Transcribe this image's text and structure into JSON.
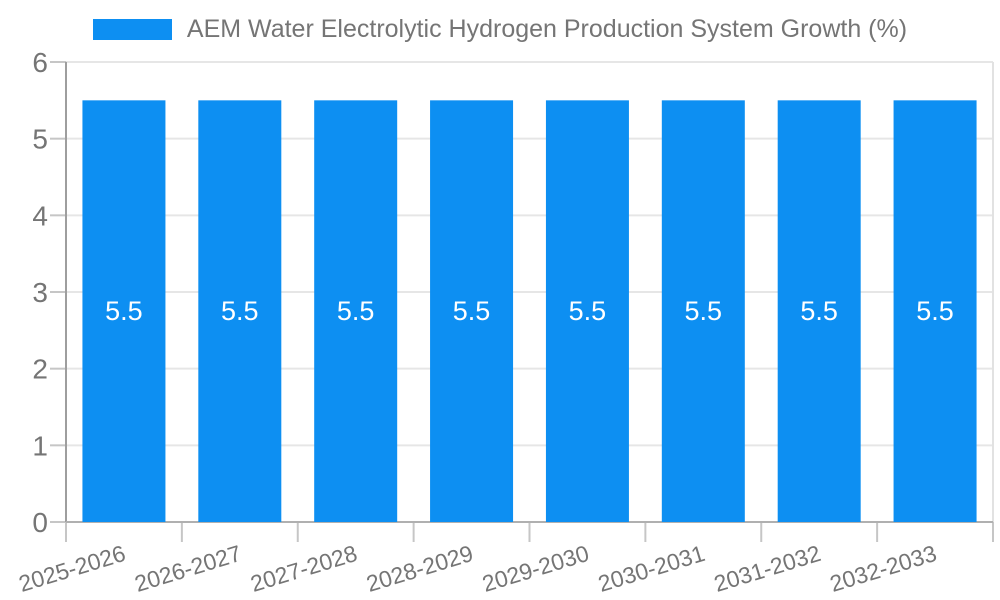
{
  "chart_data": {
    "type": "bar",
    "title": "AEM Water Electrolytic Hydrogen Production System Growth (%)",
    "legend": {
      "position": "top",
      "label": "AEM Water Electrolytic Hydrogen Production System Growth (%)"
    },
    "categories": [
      "2025-2026",
      "2026-2027",
      "2027-2028",
      "2028-2029",
      "2029-2030",
      "2030-2031",
      "2031-2032",
      "2032-2033"
    ],
    "series": [
      {
        "name": "AEM Water Electrolytic Hydrogen Production System Growth (%)",
        "values": [
          5.5,
          5.5,
          5.5,
          5.5,
          5.5,
          5.5,
          5.5,
          5.5
        ]
      }
    ],
    "value_labels": [
      "5.5",
      "5.5",
      "5.5",
      "5.5",
      "5.5",
      "5.5",
      "5.5",
      "5.5"
    ],
    "xlabel": "",
    "ylabel": "",
    "ylim": [
      0,
      6
    ],
    "y_ticks": [
      0,
      1,
      2,
      3,
      4,
      5,
      6
    ],
    "grid": true,
    "colors": {
      "bar": "#0d8ff2",
      "value_label": "#ffffff",
      "axis_text": "#757575",
      "gridline": "#e6e6e6",
      "tick": "#c6c6c6",
      "axis_line_left": "#9e9e9e",
      "axis_line_bottom": "#b0b0b0",
      "plot_border_right": "#e2e2e2",
      "background": "#ffffff"
    }
  }
}
